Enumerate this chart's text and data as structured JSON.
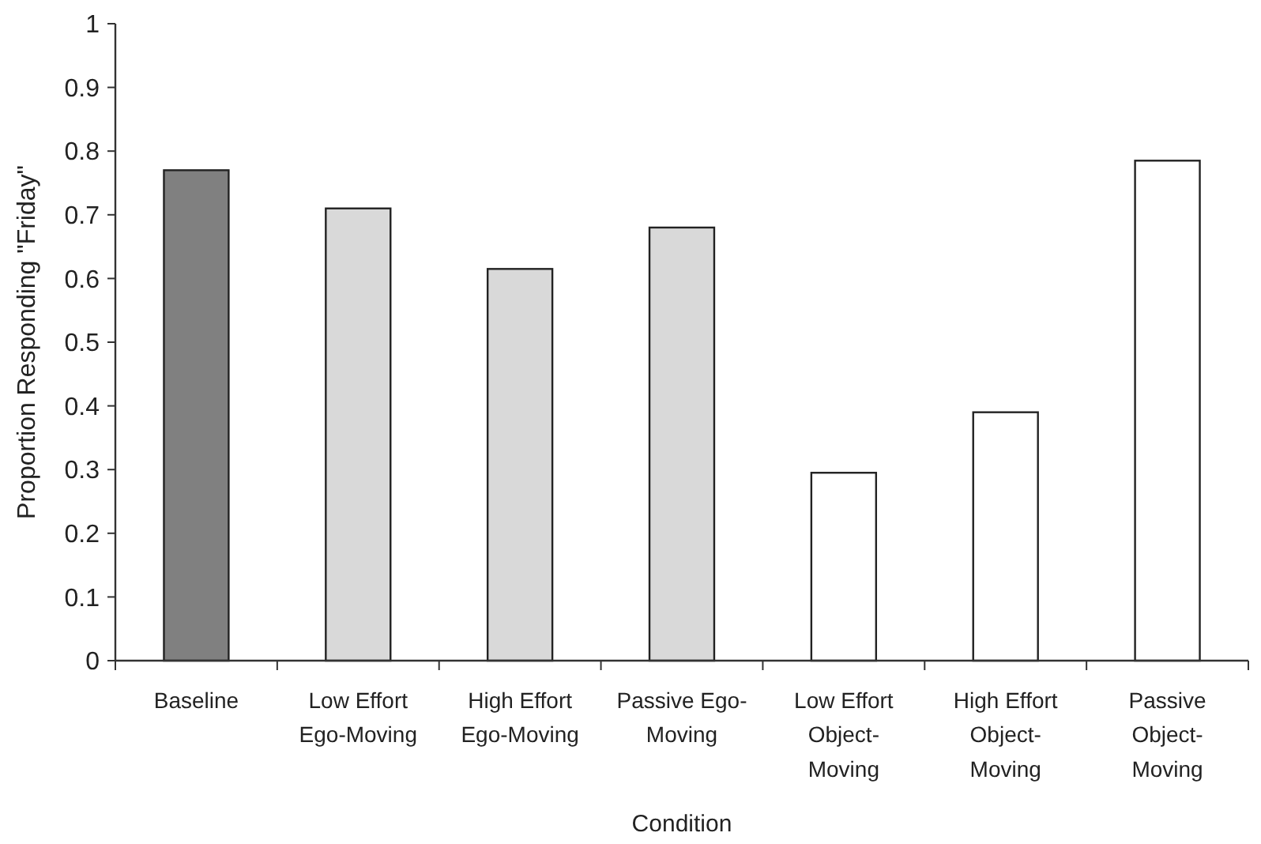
{
  "chart_data": {
    "type": "bar",
    "xlabel": "Condition",
    "ylabel": "Proportion Responding \"Friday\"",
    "categories": [
      "Baseline",
      "Low Effort Ego-Moving",
      "High Effort Ego-Moving",
      "Passive Ego-Moving",
      "Low Effort Object-Moving",
      "High Effort Object-Moving",
      "Passive Object-Moving"
    ],
    "values": [
      0.77,
      0.71,
      0.615,
      0.68,
      0.295,
      0.39,
      0.785
    ],
    "colors": [
      "#808080",
      "#d9d9d9",
      "#d9d9d9",
      "#d9d9d9",
      "#ffffff",
      "#ffffff",
      "#ffffff"
    ],
    "ylim": [
      0,
      1
    ],
    "yticks": [
      0,
      0.1,
      0.2,
      0.3,
      0.4,
      0.5,
      0.6,
      0.7,
      0.8,
      0.9,
      1
    ],
    "grid": false
  }
}
